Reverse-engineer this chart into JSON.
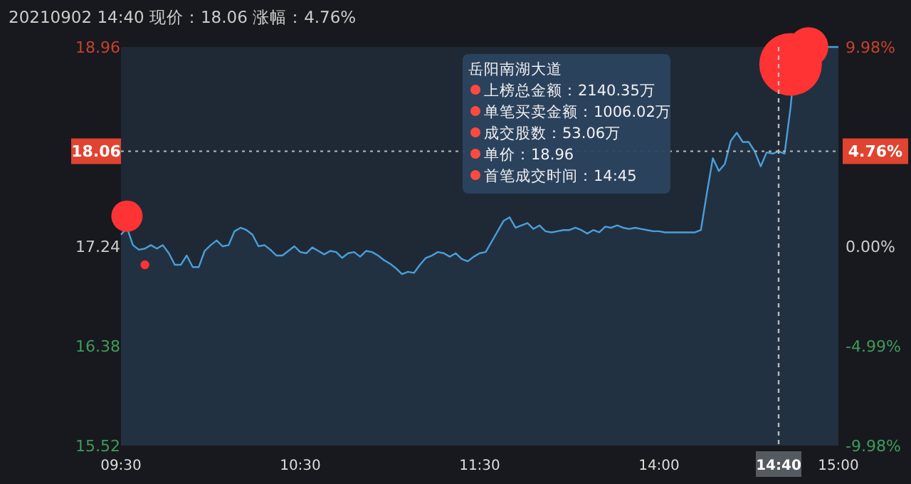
{
  "chart_data": {
    "type": "area",
    "title": "20210902 14:40 现价：18.06 涨幅：4.76%",
    "categories": [
      "09:30",
      null,
      null,
      null,
      null,
      null,
      null,
      null,
      null,
      null,
      null,
      null,
      null,
      null,
      null,
      null,
      null,
      null,
      null,
      null,
      null,
      null,
      null,
      null,
      null,
      null,
      null,
      null,
      null,
      null,
      "10:30",
      null,
      null,
      null,
      null,
      null,
      null,
      null,
      null,
      null,
      null,
      null,
      null,
      null,
      null,
      null,
      null,
      null,
      null,
      null,
      null,
      null,
      null,
      null,
      null,
      null,
      null,
      null,
      null,
      null,
      "11:30",
      null,
      null,
      null,
      null,
      null,
      null,
      null,
      null,
      null,
      null,
      null,
      null,
      null,
      null,
      null,
      null,
      null,
      null,
      null,
      null,
      null,
      null,
      null,
      null,
      null,
      null,
      null,
      null,
      null,
      "14:00",
      null,
      null,
      null,
      null,
      null,
      null,
      null,
      null,
      null,
      null,
      null,
      null,
      null,
      null,
      null,
      null,
      null,
      null,
      null,
      "14:40",
      null,
      null,
      null,
      null,
      null,
      null,
      null,
      null,
      null,
      "15:00"
    ],
    "ylim": [
      15.52,
      18.96
    ],
    "yticks": [
      15.52,
      16.38,
      17.24,
      18.96
    ],
    "y2lim": [
      -9.98,
      9.98
    ],
    "y2ticks": [
      {
        "value": -9.98,
        "label": "-9.98%"
      },
      {
        "value": -4.99,
        "label": "-4.99%"
      },
      {
        "value": 0,
        "label": "0.00%"
      },
      {
        "value": 4.76,
        "label": "4.76%"
      },
      {
        "value": 9.98,
        "label": "9.98%"
      }
    ],
    "series": [
      {
        "color": "#4a9fd8",
        "values": [
          17.34,
          17.4,
          17.25,
          17.21,
          17.22,
          17.25,
          17.22,
          17.25,
          17.18,
          17.08,
          17.08,
          17.16,
          17.06,
          17.06,
          17.2,
          17.25,
          17.29,
          17.24,
          17.25,
          17.37,
          17.4,
          17.38,
          17.34,
          17.24,
          17.25,
          17.21,
          17.16,
          17.16,
          17.2,
          17.24,
          17.19,
          17.18,
          17.23,
          17.2,
          17.17,
          17.2,
          17.19,
          17.14,
          17.18,
          17.19,
          17.15,
          17.2,
          17.19,
          17.16,
          17.12,
          17.09,
          17.05,
          17.0,
          17.02,
          17.01,
          17.08,
          17.14,
          17.16,
          17.19,
          17.18,
          17.15,
          17.18,
          17.13,
          17.11,
          17.15,
          17.18,
          17.19,
          17.28,
          17.37,
          17.46,
          17.49,
          17.4,
          17.42,
          17.44,
          17.39,
          17.42,
          17.37,
          17.36,
          17.37,
          17.38,
          17.38,
          17.4,
          17.38,
          17.35,
          17.38,
          17.36,
          17.41,
          17.4,
          17.42,
          17.4,
          17.39,
          17.4,
          17.39,
          17.38,
          17.37,
          17.37,
          17.36,
          17.36,
          17.36,
          17.36,
          17.36,
          17.36,
          17.38,
          17.7,
          18.0,
          17.89,
          17.95,
          18.15,
          18.22,
          18.14,
          18.14,
          18.06,
          17.93,
          18.05,
          18.04,
          18.06,
          18.04,
          18.44,
          18.96,
          18.96,
          18.96,
          18.96,
          18.96,
          18.96,
          18.96,
          18.96
        ]
      },
      {
        "type": "bubble",
        "color": "#ff3333",
        "values": [
          null,
          17.5,
          null,
          null,
          17.08,
          null,
          null,
          null,
          null,
          null,
          null,
          null,
          null,
          null,
          null,
          null,
          null,
          null,
          null,
          null,
          null,
          null,
          null,
          null,
          null,
          null,
          null,
          null,
          null,
          null,
          null,
          null,
          null,
          null,
          null,
          null,
          null,
          null,
          null,
          null,
          null,
          null,
          null,
          null,
          null,
          null,
          null,
          null,
          null,
          null,
          null,
          null,
          null,
          null,
          null,
          null,
          null,
          null,
          null,
          null,
          null,
          null,
          null,
          null,
          null,
          null,
          null,
          null,
          null,
          null,
          null,
          null,
          null,
          null,
          null,
          null,
          null,
          null,
          null,
          null,
          null,
          null,
          null,
          null,
          null,
          null,
          null,
          null,
          null,
          null,
          null,
          null,
          null,
          null,
          null,
          null,
          null,
          null,
          null,
          null,
          null,
          null,
          null,
          null,
          null,
          null,
          null,
          null,
          null,
          null,
          null,
          null,
          18.81,
          null,
          null,
          18.96,
          null,
          null,
          null,
          null,
          null
        ],
        "sizes": [
          null,
          0.25,
          null,
          null,
          0.02,
          null,
          null,
          null,
          null,
          null,
          null,
          null,
          null,
          null,
          null,
          null,
          null,
          null,
          null,
          null,
          null,
          null,
          null,
          null,
          null,
          null,
          null,
          null,
          null,
          null,
          null,
          null,
          null,
          null,
          null,
          null,
          null,
          null,
          null,
          null,
          null,
          null,
          null,
          null,
          null,
          null,
          null,
          null,
          null,
          null,
          null,
          null,
          null,
          null,
          null,
          null,
          null,
          null,
          null,
          null,
          null,
          null,
          null,
          null,
          null,
          null,
          null,
          null,
          null,
          null,
          null,
          null,
          null,
          null,
          null,
          null,
          null,
          null,
          null,
          null,
          null,
          null,
          null,
          null,
          null,
          null,
          null,
          null,
          null,
          null,
          null,
          null,
          null,
          null,
          null,
          null,
          null,
          null,
          null,
          null,
          null,
          null,
          null,
          null,
          null,
          null,
          null,
          null,
          null,
          null,
          null,
          null,
          1,
          null,
          null,
          0.4,
          null,
          null,
          null,
          null,
          null
        ]
      }
    ],
    "ref_lines": [
      {
        "axis": "y",
        "value": 18.06,
        "label": "18.06",
        "color": "#bbbbbb"
      },
      {
        "axis": "x",
        "value": "14:40",
        "color": "#bbbbbb"
      }
    ],
    "annotations": [
      "岳阳南湖大道",
      "上榜总金额：2140.35万",
      "单笔买卖金额：1006.02万",
      "成交股数：53.06万",
      "单价：18.96",
      "首笔成交时间：14:45"
    ]
  }
}
